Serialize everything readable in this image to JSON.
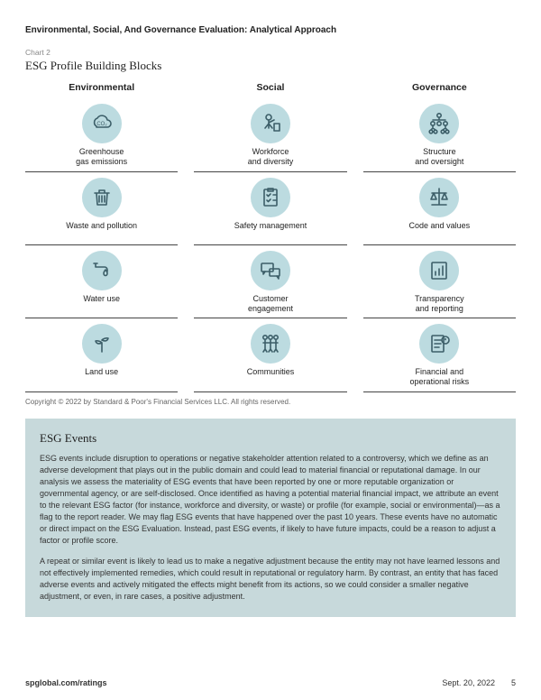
{
  "doc_title": "Environmental, Social, And Governance Evaluation: Analytical Approach",
  "chart_label": "Chart 2",
  "chart_title": "ESG Profile Building Blocks",
  "colors": {
    "icon_bg": "#bcdbe0",
    "icon_stroke": "#3c5e68",
    "events_bg": "#c7d9db",
    "rule": "#444444"
  },
  "columns": [
    "Environmental",
    "Social",
    "Governance"
  ],
  "rows": [
    [
      {
        "icon": "cloud-co2",
        "label": "Greenhouse\ngas emissions"
      },
      {
        "icon": "worker",
        "label": "Workforce\nand diversity"
      },
      {
        "icon": "org-chart",
        "label": "Structure\nand oversight"
      }
    ],
    [
      {
        "icon": "trash",
        "label": "Waste and pollution"
      },
      {
        "icon": "checklist",
        "label": "Safety management"
      },
      {
        "icon": "scales",
        "label": "Code and values"
      }
    ],
    [
      {
        "icon": "tap",
        "label": "Water use"
      },
      {
        "icon": "speech",
        "label": "Customer\nengagement"
      },
      {
        "icon": "report",
        "label": "Transparency\nand reporting"
      }
    ],
    [
      {
        "icon": "sprout",
        "label": "Land use"
      },
      {
        "icon": "people",
        "label": "Communities"
      },
      {
        "icon": "doc-alert",
        "label": "Financial and\noperational risks"
      }
    ]
  ],
  "copyright": "Copyright © 2022 by Standard & Poor's Financial Services LLC. All rights reserved.",
  "events": {
    "title": "ESG Events",
    "p1": "ESG events include disruption to operations or negative stakeholder attention related to a controversy, which we define as an adverse development that plays out in the public domain and could lead to material financial or reputational damage. In our analysis we assess the materiality of ESG events that have been reported by one or more reputable organization or governmental agency, or are self-disclosed. Once identified as having a potential material financial impact, we attribute an event to the relevant ESG factor (for instance, workforce and diversity, or waste) or profile (for example, social or environmental)—as a flag to the report reader. We may flag ESG events that have happened over the past 10 years. These events have no automatic or direct impact on the ESG Evaluation. Instead, past ESG events, if likely to have future impacts, could be a reason to adjust a factor or profile score.",
    "p2": "A repeat or similar event is likely to lead us to make a negative adjustment because the entity may not have learned lessons and not effectively implemented remedies, which could result in reputational or regulatory harm. By contrast, an entity that has faced adverse events and actively mitigated the effects might benefit from its actions, so we could consider a smaller negative adjustment, or even, in rare cases, a positive adjustment."
  },
  "footer": {
    "site": "spglobal.com/ratings",
    "date": "Sept. 20, 2022",
    "page": "5"
  }
}
